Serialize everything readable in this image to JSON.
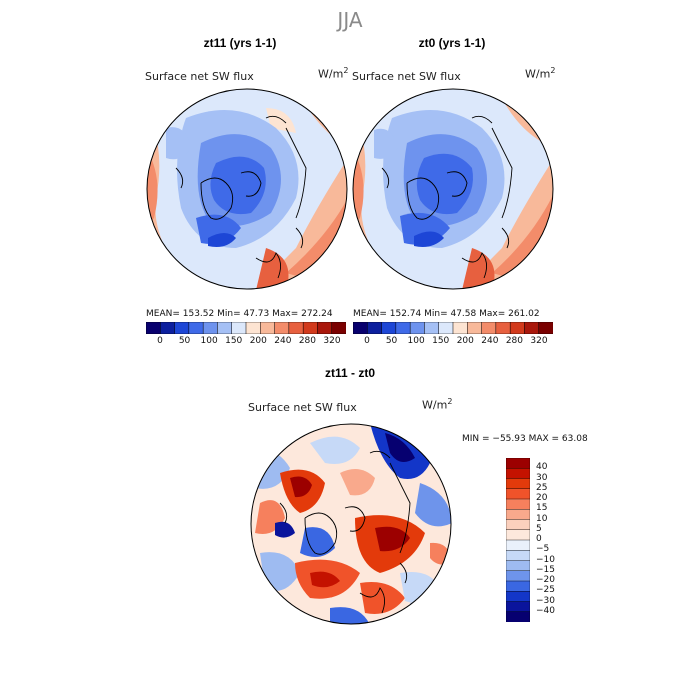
{
  "main_title": "JJA",
  "panels": [
    {
      "title": "zt11 (yrs 1-1)",
      "variable": "Surface net SW flux",
      "units": "W/m",
      "units_sup": "2",
      "stats": "MEAN= 153.52   Min=   47.73    Max= 272.24"
    },
    {
      "title": "zt0 (yrs 1-1)",
      "variable": "Surface net SW flux",
      "units": "W/m",
      "units_sup": "2",
      "stats": "MEAN= 152.74   Min=   47.58    Max= 261.02"
    }
  ],
  "abs_colorbar": {
    "colors": [
      "#08006e",
      "#0c1f9e",
      "#1d46d6",
      "#3f6ae8",
      "#6e93ee",
      "#a5c0f5",
      "#dce8fb",
      "#fde4d2",
      "#f8b99a",
      "#f38c6a",
      "#e7603f",
      "#d23a1c",
      "#a9170b",
      "#7a0000"
    ],
    "labels": [
      "0",
      "50",
      "100",
      "150",
      "200",
      "240",
      "280",
      "320"
    ]
  },
  "diff_panel": {
    "title": "zt11 - zt0",
    "variable": "Surface net SW flux",
    "units": "W/m",
    "units_sup": "2",
    "stats": "MIN = −55.93 MAX =   63.08"
  },
  "diff_colorbar": {
    "colors": [
      "#9c0000",
      "#c41200",
      "#e33a0b",
      "#f0532a",
      "#f6805d",
      "#f9a98c",
      "#fbd0bd",
      "#fde8dc",
      "#eaf1fb",
      "#c6d9f7",
      "#9ebbf1",
      "#6e94eb",
      "#3a67e2",
      "#1336c8",
      "#0a149c",
      "#060070"
    ],
    "labels": [
      "40",
      "30",
      "25",
      "20",
      "15",
      "10",
      "5",
      "0",
      "−5",
      "−10",
      "−15",
      "−20",
      "−25",
      "−30",
      "−40"
    ]
  }
}
